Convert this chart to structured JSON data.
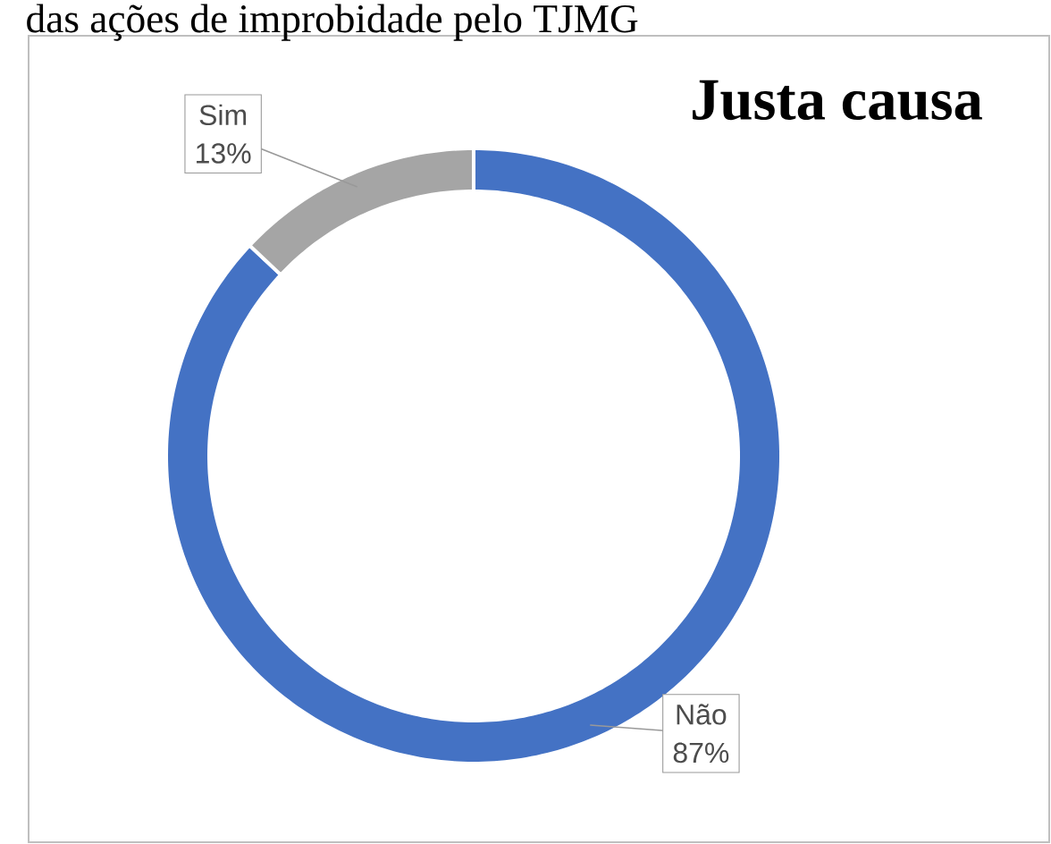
{
  "chart_data": {
    "type": "donut",
    "title": "Justa causa",
    "annotations": [
      "das ações de improbidade pelo TJMG"
    ],
    "categories": [
      "Não",
      "Sim"
    ],
    "values": [
      87,
      13
    ],
    "colors": [
      "#4472c4",
      "#a5a5a5"
    ],
    "value_labels": [
      "87%",
      "13%"
    ]
  }
}
